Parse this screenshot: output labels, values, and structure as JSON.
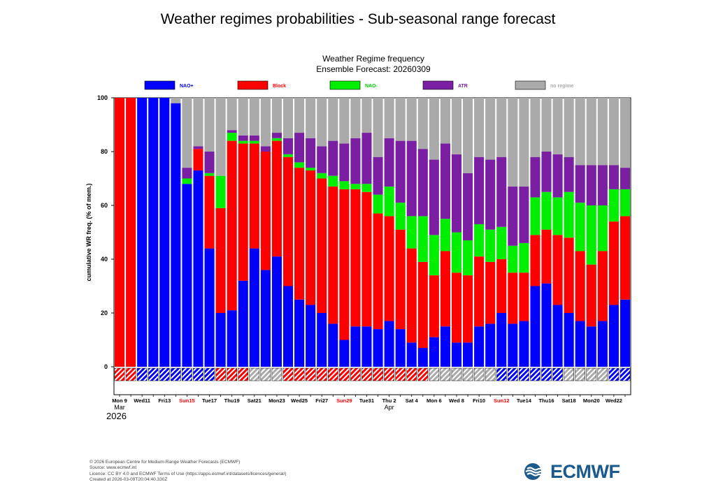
{
  "page": {
    "title": "Weather regimes probabilities - Sub-seasonal range forecast"
  },
  "colors": {
    "NAO+": "#0000ff",
    "Block": "#ff0000",
    "NAO-": "#00ee00",
    "ATR": "#7a1fa2",
    "no regime": "#aaaaaa"
  },
  "chart_data": {
    "type": "bar",
    "stacked": true,
    "title": "Weather Regime frequency",
    "subtitle": "Ensemble Forecast: 20260309",
    "ylabel": "cumulative WR freq. (% of mem.)",
    "ylim": [
      0,
      100
    ],
    "yticks": [
      0,
      20,
      40,
      60,
      80,
      100
    ],
    "legend_position": "top",
    "legend": [
      "NAO+",
      "Block",
      "NAO-",
      "ATR",
      "no regime"
    ],
    "categories": [
      "2026-03-09",
      "2026-03-10",
      "2026-03-11",
      "2026-03-12",
      "2026-03-13",
      "2026-03-14",
      "2026-03-15",
      "2026-03-16",
      "2026-03-17",
      "2026-03-18",
      "2026-03-19",
      "2026-03-20",
      "2026-03-21",
      "2026-03-22",
      "2026-03-23",
      "2026-03-24",
      "2026-03-25",
      "2026-03-26",
      "2026-03-27",
      "2026-03-28",
      "2026-03-29",
      "2026-03-30",
      "2026-03-31",
      "2026-04-01",
      "2026-04-02",
      "2026-04-03",
      "2026-04-04",
      "2026-04-05",
      "2026-04-06",
      "2026-04-07",
      "2026-04-08",
      "2026-04-09",
      "2026-04-10",
      "2026-04-11",
      "2026-04-12",
      "2026-04-13",
      "2026-04-14",
      "2026-04-15",
      "2026-04-16",
      "2026-04-17",
      "2026-04-18",
      "2026-04-19",
      "2026-04-20",
      "2026-04-21",
      "2026-04-22",
      "2026-04-23"
    ],
    "series": [
      {
        "name": "NAO+",
        "values": [
          0,
          0,
          100,
          100,
          100,
          98,
          68,
          73,
          44,
          20,
          21,
          32,
          44,
          36,
          41,
          30,
          25,
          23,
          20,
          16,
          10,
          15,
          15,
          14,
          17,
          14,
          9,
          7,
          11,
          15,
          9,
          9,
          15,
          16,
          20,
          16,
          17,
          30,
          31,
          23,
          20,
          17,
          15,
          17,
          23,
          25
        ]
      },
      {
        "name": "Block",
        "values": [
          100,
          100,
          0,
          0,
          0,
          0,
          0,
          8,
          27,
          39,
          63,
          51,
          39,
          44,
          43,
          48,
          49,
          50,
          50,
          51,
          56,
          51,
          50,
          43,
          39,
          37,
          35,
          32,
          23,
          28,
          26,
          25,
          26,
          23,
          20,
          19,
          18,
          19,
          20,
          26,
          28,
          26,
          23,
          26,
          31,
          31
        ]
      },
      {
        "name": "NAO-",
        "values": [
          0,
          0,
          0,
          0,
          0,
          0,
          2,
          0,
          1,
          12,
          3,
          1,
          1,
          0,
          1,
          1,
          2,
          1,
          2,
          4,
          3,
          2,
          3,
          7,
          11,
          10,
          12,
          17,
          15,
          12,
          15,
          13,
          12,
          12,
          12,
          10,
          11,
          14,
          14,
          14,
          17,
          18,
          22,
          17,
          12,
          10
        ]
      },
      {
        "name": "ATR",
        "values": [
          0,
          0,
          0,
          0,
          0,
          0,
          4,
          1,
          8,
          0,
          1,
          2,
          2,
          2,
          2,
          6,
          11,
          11,
          10,
          13,
          14,
          17,
          19,
          14,
          18,
          23,
          28,
          25,
          28,
          28,
          29,
          25,
          25,
          26,
          26,
          22,
          21,
          15,
          15,
          16,
          13,
          14,
          15,
          15,
          9,
          8
        ]
      },
      {
        "name": "no regime",
        "values": [
          0,
          0,
          0,
          0,
          0,
          2,
          26,
          18,
          20,
          29,
          12,
          14,
          14,
          18,
          13,
          15,
          13,
          15,
          18,
          16,
          17,
          15,
          13,
          22,
          15,
          16,
          16,
          19,
          23,
          17,
          21,
          28,
          22,
          23,
          22,
          33,
          33,
          22,
          20,
          21,
          22,
          25,
          25,
          25,
          25,
          26
        ]
      }
    ],
    "dominant_regime_strip": [
      "Block",
      "Block",
      "NAO+",
      "NAO+",
      "NAO+",
      "NAO+",
      "NAO+",
      "NAO+",
      "NAO+",
      "Block",
      "Block",
      "Block",
      "no regime",
      "no regime",
      "no regime",
      "Block",
      "Block",
      "Block",
      "Block",
      "Block",
      "Block",
      "Block",
      "Block",
      "Block",
      "Block",
      "Block",
      "Block",
      "Block",
      "no regime",
      "no regime",
      "no regime",
      "no regime",
      "no regime",
      "no regime",
      "NAO+",
      "NAO+",
      "NAO+",
      "NAO+",
      "NAO+",
      "NAO+",
      "no regime",
      "no regime",
      "no regime",
      "no regime",
      "NAO+",
      "NAO+"
    ],
    "xtick_labels": [
      {
        "index": 0,
        "text": "Mon 9",
        "red": false
      },
      {
        "index": 2,
        "text": "Wed11",
        "red": false
      },
      {
        "index": 4,
        "text": "Fri13",
        "red": false
      },
      {
        "index": 6,
        "text": "Sun15",
        "red": true
      },
      {
        "index": 8,
        "text": "Tue17",
        "red": false
      },
      {
        "index": 10,
        "text": "Thu19",
        "red": false
      },
      {
        "index": 12,
        "text": "Sat21",
        "red": false
      },
      {
        "index": 14,
        "text": "Mon23",
        "red": false
      },
      {
        "index": 16,
        "text": "Wed25",
        "red": false
      },
      {
        "index": 18,
        "text": "Fri27",
        "red": false
      },
      {
        "index": 20,
        "text": "Sun29",
        "red": true
      },
      {
        "index": 22,
        "text": "Tue31",
        "red": false
      },
      {
        "index": 24,
        "text": "Thu 2",
        "red": false
      },
      {
        "index": 26,
        "text": "Sat 4",
        "red": false
      },
      {
        "index": 28,
        "text": "Mon 6",
        "red": false
      },
      {
        "index": 30,
        "text": "Wed 8",
        "red": false
      },
      {
        "index": 32,
        "text": "Fri10",
        "red": false
      },
      {
        "index": 34,
        "text": "Sun12",
        "red": true
      },
      {
        "index": 36,
        "text": "Tue14",
        "red": false
      },
      {
        "index": 38,
        "text": "Thu16",
        "red": false
      },
      {
        "index": 40,
        "text": "Sat18",
        "red": false
      },
      {
        "index": 42,
        "text": "Mon20",
        "red": false
      },
      {
        "index": 44,
        "text": "Wed22",
        "red": false
      }
    ],
    "month_labels": [
      {
        "index": 0,
        "text": "Mar"
      },
      {
        "index": 24,
        "text": "Apr"
      }
    ],
    "year_label": "2026"
  },
  "footer": {
    "line1": "© 2026 European Centre for Medium-Range Weather Forecasts (ECMWF)",
    "line2": "Source: www.ecmwf.int",
    "line3": "Licence: CC BY 4.0 and ECMWF Terms of Use (https://apps.ecmwf.int/datasets/licences/general/)",
    "line4": "Created at 2026-03-09T20:04:40.330Z"
  },
  "logo": {
    "text": "ECMWF",
    "icon": "ecmwf-logo-icon"
  }
}
